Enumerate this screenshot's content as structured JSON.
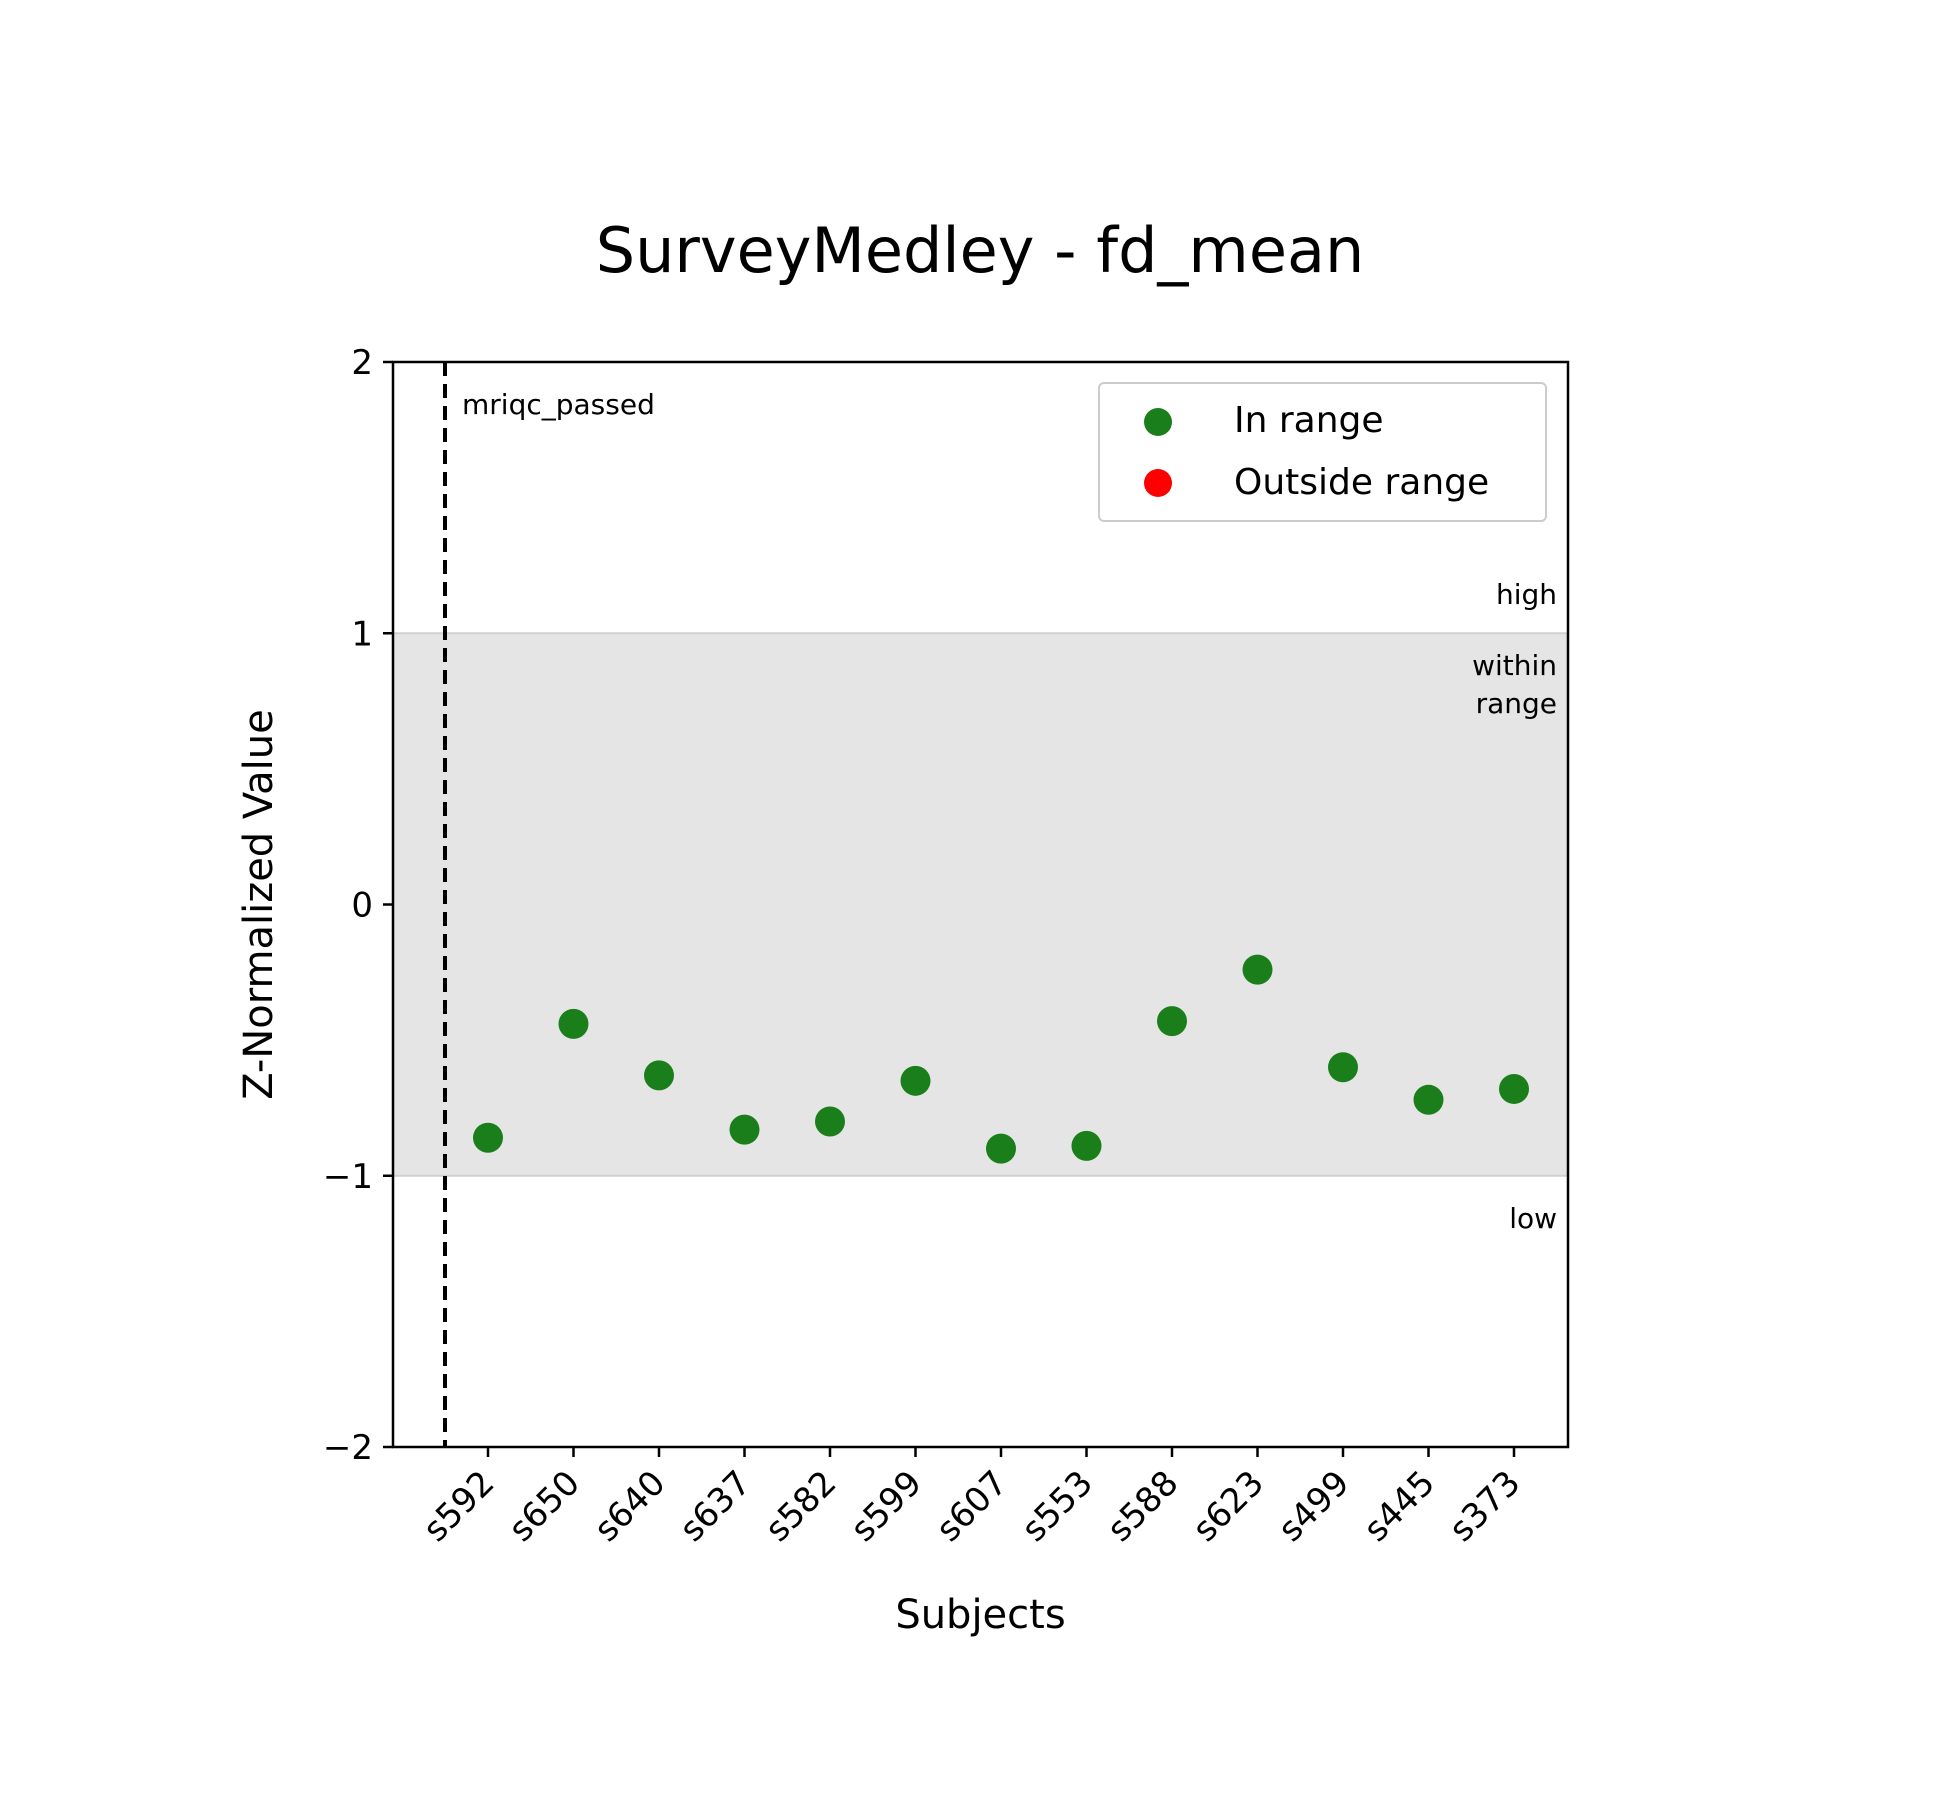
{
  "chart_data": {
    "type": "scatter",
    "title": "SurveyMedley - fd_mean",
    "xlabel": "Subjects",
    "ylabel": "Z-Normalized Value",
    "ylim": [
      -2,
      2
    ],
    "yticks": [
      2,
      1,
      0,
      -1,
      -2
    ],
    "ytick_labels": [
      "2",
      "1",
      "0",
      "−1",
      "−2"
    ],
    "categories": [
      "s592",
      "s650",
      "s640",
      "s637",
      "s582",
      "s599",
      "s607",
      "s553",
      "s588",
      "s623",
      "s499",
      "s445",
      "s373"
    ],
    "series": [
      {
        "name": "In range",
        "color": "#1a7f1a",
        "values": [
          -0.86,
          -0.44,
          -0.63,
          -0.83,
          -0.8,
          -0.65,
          -0.9,
          -0.89,
          -0.43,
          -0.24,
          -0.6,
          -0.72,
          -0.68
        ]
      },
      {
        "name": "Outside range",
        "color": "#ff0000",
        "values": []
      }
    ],
    "range_band": {
      "low": -1,
      "high": 1,
      "color": "#e5e5e5"
    },
    "range_labels": {
      "high": "high",
      "within": [
        "within",
        "range"
      ],
      "low": "low"
    },
    "vline": {
      "label": "mriqc_passed",
      "style": "dashed"
    },
    "legend": {
      "position": "top-right",
      "entries": [
        "In range",
        "Outside range"
      ]
    },
    "grid": false
  }
}
